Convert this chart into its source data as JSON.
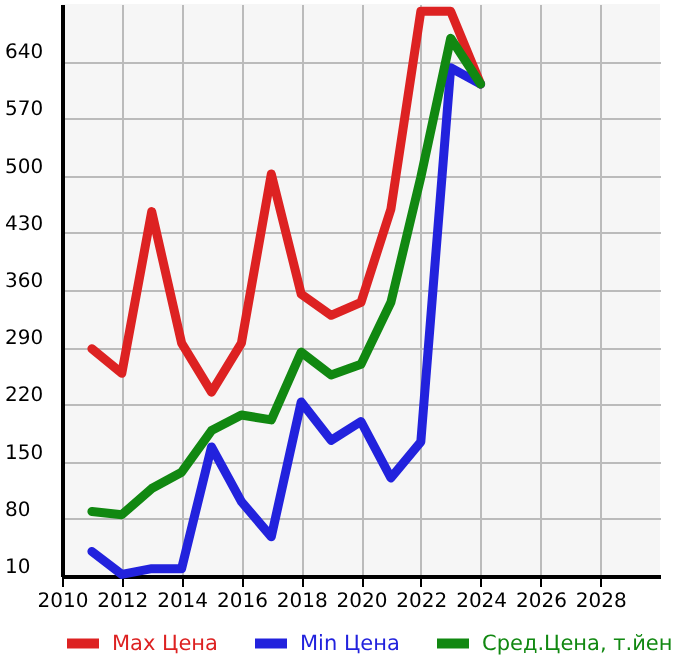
{
  "chart_data": {
    "type": "line",
    "x": [
      2011,
      2012,
      2013,
      2014,
      2015,
      2016,
      2017,
      2018,
      2019,
      2020,
      2021,
      2022,
      2023,
      2024
    ],
    "series": [
      {
        "name": "Max Цена",
        "color": "#dd2222",
        "values": [
          288,
          258,
          456,
          295,
          235,
          295,
          502,
          355,
          329,
          345,
          459,
          701,
          701,
          612
        ]
      },
      {
        "name": "Min Цена",
        "color": "#2222dd",
        "values": [
          40,
          12,
          19,
          19,
          168,
          101,
          58,
          223,
          176,
          199,
          130,
          174,
          632,
          612
        ]
      },
      {
        "name": "Сред.Цена, т.йен",
        "color": "#118811",
        "values": [
          89,
          85,
          117,
          137,
          188,
          207,
          201,
          284,
          256,
          269,
          345,
          498,
          668,
          612
        ]
      }
    ],
    "xlim": [
      2010,
      2030
    ],
    "xticks": [
      2010,
      2012,
      2014,
      2016,
      2018,
      2020,
      2022,
      2024,
      2026,
      2028
    ],
    "ylim": [
      10,
      710
    ],
    "yticks": [
      10,
      80,
      150,
      220,
      290,
      360,
      430,
      500,
      570,
      640
    ],
    "grid": true,
    "legend": "bottom",
    "line_style": "solid"
  }
}
